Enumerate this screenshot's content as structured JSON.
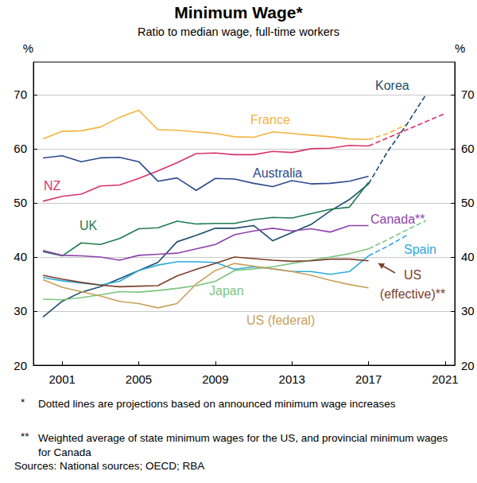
{
  "chart_data": {
    "type": "line",
    "title": "Minimum Wage*",
    "subtitle": "Ratio to median wage, full-time workers",
    "y_label": "%",
    "y2_label": "%",
    "x": [
      2000,
      2001,
      2002,
      2003,
      2004,
      2005,
      2006,
      2007,
      2008,
      2009,
      2010,
      2011,
      2012,
      2013,
      2014,
      2015,
      2016,
      2017,
      2018,
      2019,
      2020,
      2021
    ],
    "xlim": [
      1999.5,
      2021.5
    ],
    "xticks": [
      2001,
      2005,
      2009,
      2013,
      2017,
      2021
    ],
    "ylim": [
      20,
      76
    ],
    "yticks": [
      20,
      30,
      40,
      50,
      60,
      70
    ],
    "y2lim": [
      20,
      76
    ],
    "y2ticks": [
      20,
      30,
      40,
      50,
      60,
      70
    ],
    "grid": true,
    "series": [
      {
        "name": "France",
        "color": "#f3b33d",
        "values": [
          61.8,
          63.2,
          63.3,
          64.0,
          65.8,
          67.1,
          63.5,
          63.4,
          63.1,
          62.8,
          62.2,
          62.1,
          63.1,
          62.8,
          62.5,
          62.2,
          61.8,
          61.7,
          null,
          null,
          null,
          null
        ],
        "projection": [
          null,
          null,
          null,
          null,
          null,
          null,
          null,
          null,
          null,
          null,
          null,
          null,
          null,
          null,
          null,
          null,
          null,
          61.7,
          62.8,
          64.5,
          null,
          null
        ]
      },
      {
        "name": "NZ",
        "color": "#d8336e",
        "values": [
          50.3,
          51.2,
          51.6,
          53.1,
          53.3,
          54.5,
          55.9,
          57.4,
          59.1,
          59.2,
          58.9,
          58.9,
          59.5,
          59.3,
          60.0,
          60.1,
          60.6,
          60.5,
          null,
          null,
          null,
          null
        ],
        "projection": [
          null,
          null,
          null,
          null,
          null,
          null,
          null,
          null,
          null,
          null,
          null,
          null,
          null,
          null,
          null,
          null,
          null,
          60.5,
          62.0,
          63.5,
          65.0,
          66.5
        ]
      },
      {
        "name": "Australia",
        "color": "#2c4a8c",
        "values": [
          58.3,
          58.7,
          57.6,
          58.3,
          58.4,
          57.6,
          54.0,
          54.6,
          52.3,
          54.5,
          54.4,
          53.6,
          53.0,
          54.1,
          53.5,
          53.6,
          54.0,
          54.9,
          null,
          null,
          null,
          null
        ],
        "projection": [
          null,
          null,
          null,
          null,
          null,
          null,
          null,
          null,
          null,
          null,
          null,
          null,
          null,
          null,
          null,
          null,
          null,
          null,
          null,
          null,
          null,
          null
        ]
      },
      {
        "name": "Korea",
        "color": "#1d4e6c",
        "values": [
          28.9,
          31.8,
          33.5,
          34.5,
          36.0,
          37.5,
          39.0,
          42.8,
          44.0,
          45.3,
          45.3,
          45.8,
          43.0,
          44.5,
          46.0,
          48.5,
          50.6,
          53.5,
          null,
          null,
          null,
          null
        ],
        "projection": [
          null,
          null,
          null,
          null,
          null,
          null,
          null,
          null,
          null,
          null,
          null,
          null,
          null,
          null,
          null,
          null,
          null,
          53.5,
          59.5,
          64.5,
          70.0,
          null
        ]
      },
      {
        "name": "UK",
        "color": "#1f7a50",
        "values": [
          41.0,
          40.2,
          42.6,
          42.3,
          43.4,
          45.2,
          45.4,
          46.6,
          46.1,
          46.2,
          46.2,
          46.9,
          47.3,
          47.2,
          48.0,
          48.8,
          49.2,
          53.8,
          null,
          null,
          null,
          null
        ],
        "projection": [
          null,
          null,
          null,
          null,
          null,
          null,
          null,
          null,
          null,
          null,
          null,
          null,
          null,
          null,
          null,
          null,
          null,
          null,
          null,
          null,
          null,
          null
        ]
      },
      {
        "name": "Canada**",
        "color": "#8e44ad",
        "values": [
          41.2,
          40.3,
          40.2,
          40.0,
          39.4,
          40.3,
          40.5,
          40.7,
          41.5,
          42.3,
          44.1,
          44.8,
          45.3,
          44.8,
          45.2,
          44.6,
          45.8,
          45.8,
          null,
          null,
          null,
          null
        ],
        "projection": [
          null,
          null,
          null,
          null,
          null,
          null,
          null,
          null,
          null,
          null,
          null,
          null,
          null,
          null,
          null,
          null,
          null,
          null,
          null,
          null,
          null,
          null
        ]
      },
      {
        "name": "Spain",
        "color": "#2eaadc",
        "values": [
          36.2,
          35.6,
          35.2,
          34.8,
          35.5,
          37.5,
          38.5,
          39.1,
          39.1,
          39.0,
          37.7,
          38.2,
          37.8,
          37.3,
          37.3,
          36.8,
          37.3,
          40.2,
          null,
          null,
          null,
          null
        ],
        "projection": [
          null,
          null,
          null,
          null,
          null,
          null,
          null,
          null,
          null,
          null,
          null,
          null,
          null,
          null,
          null,
          null,
          null,
          40.2,
          42.0,
          44.0,
          null,
          null
        ]
      },
      {
        "name": "Japan",
        "color": "#7cc67f",
        "values": [
          32.2,
          32.1,
          32.5,
          33.0,
          33.6,
          33.5,
          33.8,
          34.2,
          34.7,
          35.5,
          37.5,
          37.8,
          38.2,
          38.8,
          39.4,
          40.0,
          40.6,
          41.5,
          null,
          null,
          null,
          null
        ],
        "projection": [
          null,
          null,
          null,
          null,
          null,
          null,
          null,
          null,
          null,
          null,
          null,
          null,
          null,
          null,
          null,
          null,
          null,
          41.5,
          43.2,
          45.0,
          46.7,
          null
        ]
      },
      {
        "name": "US (federal)",
        "color": "#c9a05a",
        "values": [
          35.8,
          34.4,
          33.6,
          32.8,
          31.8,
          31.4,
          30.6,
          31.4,
          35.0,
          37.5,
          38.8,
          38.3,
          37.8,
          37.3,
          36.6,
          35.7,
          34.9,
          34.3,
          null,
          null,
          null,
          null
        ],
        "projection": [
          null,
          null,
          null,
          null,
          null,
          null,
          null,
          null,
          null,
          null,
          null,
          null,
          null,
          null,
          null,
          null,
          null,
          null,
          null,
          null,
          null,
          null
        ]
      },
      {
        "name": "US (effective)**",
        "color": "#7b3f2a",
        "values": [
          36.6,
          35.9,
          35.3,
          34.8,
          34.5,
          34.6,
          34.7,
          36.5,
          37.7,
          38.8,
          40.0,
          39.7,
          39.4,
          39.2,
          39.3,
          39.6,
          39.6,
          39.3,
          null,
          null,
          null,
          null
        ],
        "projection": [
          null,
          null,
          null,
          null,
          null,
          null,
          null,
          null,
          null,
          null,
          null,
          null,
          null,
          null,
          null,
          null,
          null,
          null,
          null,
          null,
          null,
          null
        ]
      }
    ],
    "notes": [
      {
        "marker": "*",
        "text": "Dotted lines are projections based on announced minimum wage increases"
      },
      {
        "marker": "**",
        "text": "Weighted average of state minimum wages for the US, and provincial minimum wages for Canada"
      }
    ],
    "source": "Sources: National sources; OECD; RBA"
  }
}
